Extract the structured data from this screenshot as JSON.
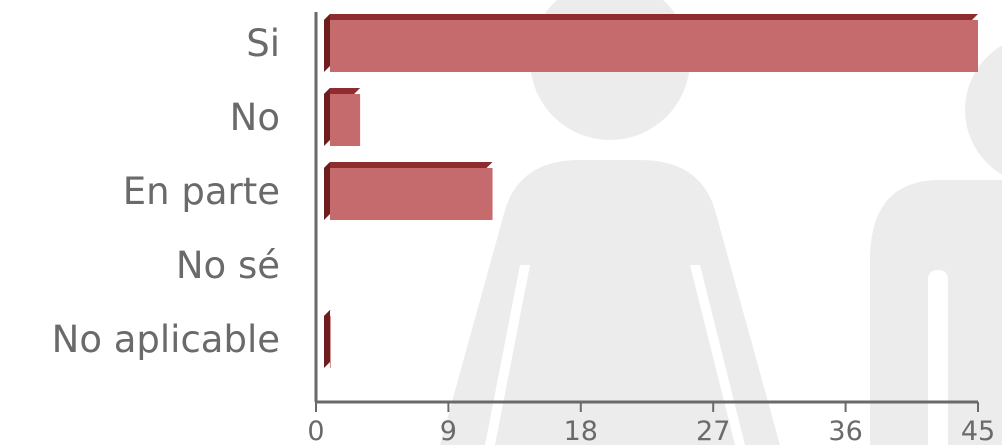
{
  "chart_data": {
    "type": "bar",
    "orientation": "horizontal",
    "style": "3d",
    "categories": [
      "Si",
      "No",
      "En parte",
      "No sé",
      "No aplicable"
    ],
    "values": [
      45,
      3,
      12,
      0,
      1
    ],
    "xlim": [
      0,
      45
    ],
    "xticks": [
      "0",
      "9",
      "18",
      "27",
      "36",
      "45"
    ],
    "title": "",
    "xlabel": "",
    "ylabel": "",
    "grid": false,
    "colors": {
      "bar_front": "#c56b6e",
      "bar_side": "#6e1d1f",
      "bar_top": "#8e2c2f",
      "axis": "#6a6a6a",
      "label": "#6a6a6a",
      "watermark": "#ececec"
    }
  }
}
